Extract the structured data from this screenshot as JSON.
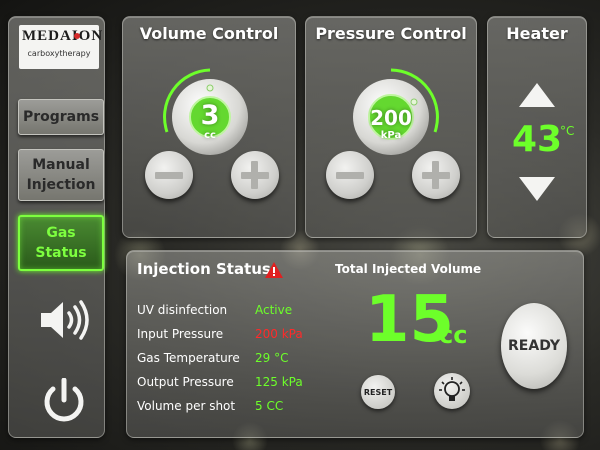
{
  "logo": {
    "name": "MEDAION",
    "subtitle": "carboxytherapy"
  },
  "sidebar": {
    "programs_label": "Programs",
    "manual_injection_label": "Manual\nInjection",
    "gas_status_label": "Gas\nStatus",
    "selected": "Gas Status"
  },
  "volume_control": {
    "title": "Volume Control",
    "value": "3",
    "unit": "cc",
    "dial_level": 0.4
  },
  "pressure_control": {
    "title": "Pressure Control",
    "value": "200",
    "unit": "kPa",
    "dial_level": 0.65
  },
  "heater": {
    "title": "Heater",
    "value": "43",
    "unit": "°C"
  },
  "injection_status": {
    "title": "Injection Status",
    "warning": true,
    "rows": [
      {
        "label": "UV disinfection",
        "value": "Active",
        "state": "ok"
      },
      {
        "label": "Input Pressure",
        "value": "200 kPa",
        "state": "alert"
      },
      {
        "label": "Gas Temperature",
        "value": "29 °C",
        "state": "ok"
      },
      {
        "label": "Output Pressure",
        "value": "125 kPa",
        "state": "ok"
      },
      {
        "label": "Volume per shot",
        "value": "5 CC",
        "state": "ok"
      }
    ],
    "total_label": "Total Injected Volume",
    "total_value": "15",
    "total_unit": "cc",
    "reset_label": "RESET",
    "ready_label": "READY"
  },
  "colors": {
    "accent_green": "#6dff2a",
    "alert_red": "#ff2a2a",
    "panel_gray": "#8a8a86"
  },
  "icons": [
    "speaker-icon",
    "power-icon",
    "warning-icon",
    "lightbulb-icon",
    "minus-icon",
    "plus-icon",
    "arrow-up-icon",
    "arrow-down-icon"
  ]
}
